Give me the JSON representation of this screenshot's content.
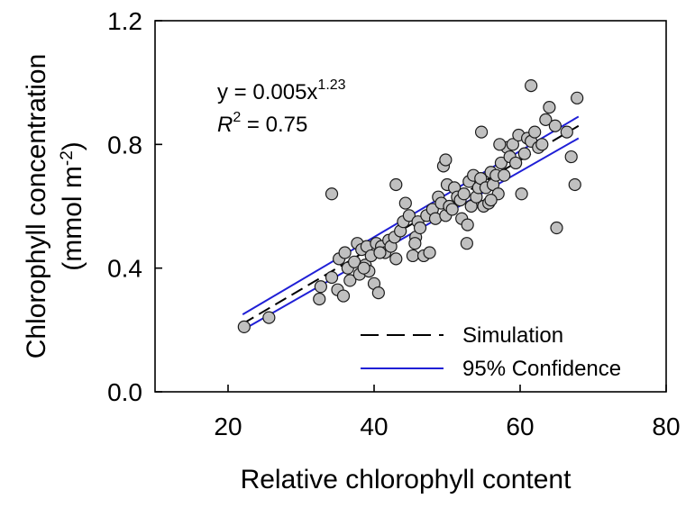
{
  "chart_data": {
    "type": "scatter",
    "xlabel": "Relative chlorophyll content",
    "ylabel_line1": "Chlorophyll concentration",
    "ylabel_line2_prefix": "(mmol m",
    "ylabel_line2_sup": "-2",
    "ylabel_line2_suffix": ")",
    "xlim": [
      10,
      80
    ],
    "ylim": [
      0.0,
      1.2
    ],
    "xticks": [
      20,
      40,
      60,
      80
    ],
    "xtick_labels": [
      "20",
      "40",
      "60",
      "80"
    ],
    "yticks": [
      0.0,
      0.4,
      0.8,
      1.2
    ],
    "ytick_labels": [
      "0.0",
      "0.4",
      "0.8",
      "1.2"
    ],
    "grid": false,
    "legend_placement": "bottom-right",
    "annotations": {
      "equation_prefix": "y = 0.005x",
      "equation_exponent": "1.23",
      "r2_symbol": "R",
      "r2_sup": "2",
      "r2_value": " = 0.75"
    },
    "series": [
      {
        "name": "Simulation",
        "kind": "fit",
        "style": "dashed",
        "color": "#000000",
        "x": [
          22,
          68
        ],
        "y": [
          0.22,
          0.86
        ]
      },
      {
        "name": "95% Confidence",
        "kind": "band",
        "style": "solid",
        "color": "#1f1fd6",
        "upper": {
          "x": [
            22,
            68
          ],
          "y": [
            0.25,
            0.89
          ]
        },
        "lower": {
          "x": [
            22,
            68
          ],
          "y": [
            0.2,
            0.82
          ]
        }
      }
    ],
    "points": {
      "color": "#c0c0c0",
      "edge_color": "#1a1a1a",
      "x": [
        22.2,
        25.6,
        32.5,
        32.7,
        34.2,
        35.0,
        35.2,
        35.8,
        36.0,
        36.4,
        36.7,
        37.3,
        37.7,
        38.0,
        38.3,
        38.8,
        39.0,
        39.3,
        39.6,
        40.0,
        40.3,
        40.6,
        41.0,
        41.5,
        42.0,
        42.3,
        42.8,
        43.0,
        43.6,
        44.0,
        44.3,
        44.8,
        45.3,
        45.7,
        46.0,
        46.3,
        46.8,
        47.2,
        47.6,
        48.0,
        48.4,
        48.8,
        49.2,
        49.5,
        49.8,
        50.0,
        50.3,
        50.7,
        51.0,
        51.4,
        51.8,
        52.0,
        52.3,
        52.7,
        53.0,
        53.3,
        53.6,
        54.0,
        54.3,
        54.6,
        55.0,
        55.3,
        55.7,
        56.0,
        56.3,
        56.7,
        57.0,
        57.4,
        57.8,
        58.2,
        58.6,
        59.0,
        59.4,
        59.8,
        60.2,
        60.6,
        61.0,
        61.5,
        62.0,
        62.5,
        63.0,
        63.5,
        64.0,
        64.8,
        66.4,
        67.0,
        67.5,
        67.8,
        34.2,
        43.0,
        49.8,
        54.7,
        57.2,
        61.5,
        65.0,
        40.8,
        38.6,
        45.6,
        52.8,
        56.0
      ],
      "y": [
        0.21,
        0.24,
        0.3,
        0.34,
        0.37,
        0.33,
        0.43,
        0.31,
        0.45,
        0.4,
        0.36,
        0.42,
        0.48,
        0.38,
        0.46,
        0.41,
        0.47,
        0.39,
        0.44,
        0.35,
        0.48,
        0.32,
        0.47,
        0.45,
        0.49,
        0.47,
        0.5,
        0.43,
        0.52,
        0.55,
        0.61,
        0.57,
        0.44,
        0.5,
        0.55,
        0.53,
        0.44,
        0.57,
        0.45,
        0.59,
        0.56,
        0.63,
        0.61,
        0.73,
        0.57,
        0.67,
        0.6,
        0.59,
        0.66,
        0.63,
        0.62,
        0.56,
        0.64,
        0.48,
        0.68,
        0.6,
        0.7,
        0.63,
        0.66,
        0.69,
        0.6,
        0.66,
        0.61,
        0.71,
        0.67,
        0.7,
        0.64,
        0.74,
        0.7,
        0.79,
        0.76,
        0.8,
        0.74,
        0.83,
        0.64,
        0.77,
        0.82,
        0.81,
        0.84,
        0.79,
        0.8,
        0.88,
        0.92,
        0.86,
        0.84,
        0.76,
        0.67,
        0.95,
        0.64,
        0.67,
        0.75,
        0.84,
        0.8,
        0.99,
        0.53,
        0.45,
        0.4,
        0.48,
        0.54,
        0.62
      ]
    }
  }
}
